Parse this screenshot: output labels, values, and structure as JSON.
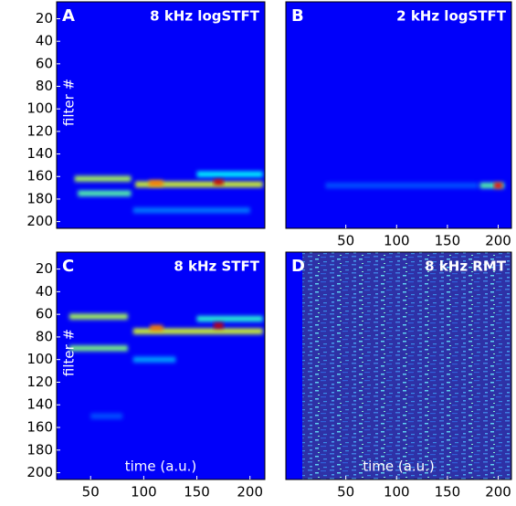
{
  "chart_data": [
    {
      "type": "heatmap",
      "panel": "A",
      "title": "8 kHz logSTFT",
      "ylabel": "filter #",
      "colormap": "jet",
      "xlim": [
        18,
        214
      ],
      "ylim": [
        5,
        206
      ],
      "yticks": [
        20,
        40,
        60,
        80,
        100,
        120,
        140,
        160,
        180,
        200
      ],
      "bands": [
        {
          "y": 162,
          "x0": 35,
          "x1": 88,
          "intensity": 0.5
        },
        {
          "y": 175,
          "x0": 38,
          "x1": 88,
          "intensity": 0.4
        },
        {
          "y": 167,
          "x0": 92,
          "x1": 212,
          "intensity": 0.55
        },
        {
          "y": 158,
          "x0": 150,
          "x1": 212,
          "intensity": 0.3
        },
        {
          "y": 190,
          "x0": 90,
          "x1": 200,
          "intensity": 0.15
        },
        {
          "y": 166,
          "x0": 105,
          "x1": 118,
          "intensity": 0.75
        },
        {
          "y": 165,
          "x0": 166,
          "x1": 175,
          "intensity": 0.95
        }
      ]
    },
    {
      "type": "heatmap",
      "panel": "B",
      "title": "2 kHz logSTFT",
      "colormap": "jet",
      "xlim": [
        -9,
        213
      ],
      "ylim": [
        5,
        206
      ],
      "xticks": [
        50,
        100,
        150,
        200
      ],
      "bands": [
        {
          "y": 168,
          "x0": 30,
          "x1": 180,
          "intensity": 0.1
        },
        {
          "y": 168,
          "x0": 182,
          "x1": 206,
          "intensity": 0.4
        },
        {
          "y": 168,
          "x0": 196,
          "x1": 204,
          "intensity": 0.9
        }
      ]
    },
    {
      "type": "heatmap",
      "panel": "C",
      "title": "8 kHz STFT",
      "ylabel": "filter #",
      "xlabel": "time (a.u.)",
      "colormap": "jet",
      "xlim": [
        18,
        214
      ],
      "ylim": [
        5,
        206
      ],
      "xticks": [
        50,
        100,
        150,
        200
      ],
      "yticks": [
        20,
        40,
        60,
        80,
        100,
        120,
        140,
        160,
        180,
        200
      ],
      "bands": [
        {
          "y": 62,
          "x0": 30,
          "x1": 85,
          "intensity": 0.5
        },
        {
          "y": 90,
          "x0": 30,
          "x1": 85,
          "intensity": 0.45
        },
        {
          "y": 75,
          "x0": 90,
          "x1": 212,
          "intensity": 0.55
        },
        {
          "y": 64,
          "x0": 150,
          "x1": 212,
          "intensity": 0.35
        },
        {
          "y": 100,
          "x0": 90,
          "x1": 130,
          "intensity": 0.2
        },
        {
          "y": 150,
          "x0": 50,
          "x1": 80,
          "intensity": 0.1
        },
        {
          "y": 72,
          "x0": 106,
          "x1": 118,
          "intensity": 0.75
        },
        {
          "y": 70,
          "x0": 166,
          "x1": 175,
          "intensity": 0.95
        }
      ]
    },
    {
      "type": "noise",
      "panel": "D",
      "title": "8 kHz RMT",
      "xlabel": "time (a.u.)",
      "colormap": "jet",
      "xlim": [
        -9,
        213
      ],
      "ylim": [
        5,
        206
      ],
      "xticks": [
        50,
        100,
        150,
        200
      ]
    }
  ]
}
